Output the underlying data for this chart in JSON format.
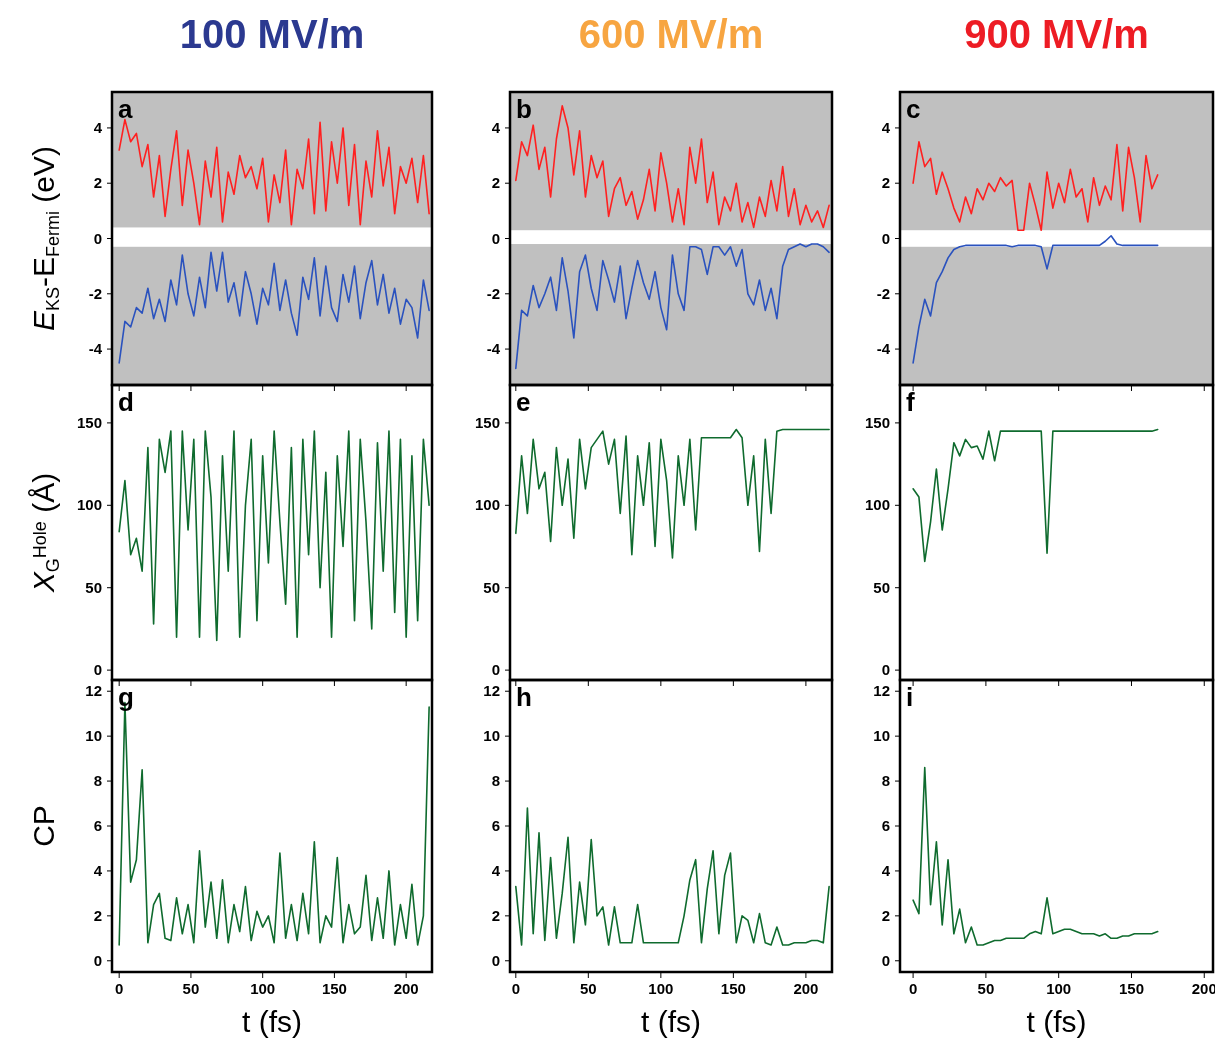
{
  "chart_data": [
    {
      "type": "line",
      "title": "100 MV/m",
      "ylabel": "E$_{KS}$-E$_{Fermi}$ (eV)",
      "annotations": [
        "a"
      ],
      "xlim": [
        -5,
        218
      ],
      "xticks": [
        0,
        50,
        100,
        150,
        200
      ],
      "ylim": [
        -5.3,
        5.3
      ],
      "yticks": [
        -4,
        -2,
        0,
        2,
        4
      ],
      "tick_labels": "y",
      "bands": [
        {
          "axis": "y",
          "from": 0.4,
          "to": 5.3,
          "color": "#c0c0c0"
        },
        {
          "axis": "y",
          "from": -5.3,
          "to": -0.3,
          "color": "#c0c0c0"
        }
      ],
      "series": [
        {
          "color": "#ff2020",
          "x": [
            0,
            4,
            8,
            12,
            16,
            20,
            24,
            28,
            32,
            36,
            40,
            44,
            48,
            52,
            56,
            60,
            64,
            68,
            72,
            76,
            80,
            84,
            88,
            92,
            96,
            100,
            104,
            108,
            112,
            116,
            120,
            124,
            128,
            132,
            136,
            140,
            144,
            148,
            152,
            156,
            160,
            164,
            168,
            172,
            176,
            180,
            184,
            188,
            192,
            196,
            200,
            204,
            208,
            212,
            216
          ],
          "values": [
            3.2,
            4.3,
            3.5,
            3.8,
            2.6,
            3.4,
            1.5,
            3.0,
            0.8,
            2.5,
            3.9,
            1.2,
            3.2,
            2.0,
            0.5,
            2.8,
            1.5,
            3.3,
            0.6,
            2.4,
            1.6,
            3.0,
            2.2,
            2.6,
            1.8,
            2.9,
            0.6,
            2.3,
            1.3,
            3.2,
            0.5,
            2.5,
            1.8,
            3.6,
            0.9,
            4.2,
            1.0,
            3.5,
            2.0,
            4.0,
            1.2,
            3.4,
            0.5,
            2.8,
            1.5,
            3.9,
            1.9,
            3.3,
            0.9,
            2.6,
            2.0,
            2.9,
            1.3,
            3.0,
            0.9
          ]
        },
        {
          "color": "#2a52be",
          "x": [
            0,
            4,
            8,
            12,
            16,
            20,
            24,
            28,
            32,
            36,
            40,
            44,
            48,
            52,
            56,
            60,
            64,
            68,
            72,
            76,
            80,
            84,
            88,
            92,
            96,
            100,
            104,
            108,
            112,
            116,
            120,
            124,
            128,
            132,
            136,
            140,
            144,
            148,
            152,
            156,
            160,
            164,
            168,
            172,
            176,
            180,
            184,
            188,
            192,
            196,
            200,
            204,
            208,
            212,
            216
          ],
          "values": [
            -4.5,
            -3.0,
            -3.2,
            -2.5,
            -2.7,
            -1.8,
            -2.9,
            -2.2,
            -3.0,
            -1.5,
            -2.4,
            -0.6,
            -2.0,
            -2.8,
            -1.4,
            -2.5,
            -0.5,
            -1.9,
            -0.5,
            -2.3,
            -1.6,
            -2.8,
            -1.2,
            -2.0,
            -3.1,
            -1.8,
            -2.4,
            -0.9,
            -2.6,
            -1.5,
            -2.7,
            -3.5,
            -1.4,
            -2.2,
            -0.7,
            -2.8,
            -1.0,
            -2.5,
            -3.0,
            -1.3,
            -2.3,
            -1.0,
            -2.9,
            -1.6,
            -0.8,
            -2.4,
            -1.3,
            -2.7,
            -1.8,
            -3.1,
            -2.2,
            -2.5,
            -3.6,
            -1.5,
            -2.6
          ]
        }
      ]
    },
    {
      "type": "line",
      "title": "600 MV/m",
      "annotations": [
        "b"
      ],
      "xlim": [
        -4,
        218
      ],
      "xticks": [
        0,
        50,
        100,
        150,
        200
      ],
      "ylim": [
        -5.3,
        5.3
      ],
      "yticks": [
        -4,
        -2,
        0,
        2,
        4
      ],
      "tick_labels": "y",
      "bands": [
        {
          "axis": "y",
          "from": 0.3,
          "to": 5.3,
          "color": "#c0c0c0"
        },
        {
          "axis": "y",
          "from": -5.3,
          "to": -0.2,
          "color": "#c0c0c0"
        }
      ],
      "series": [
        {
          "color": "#ff2020",
          "x": [
            0,
            4,
            8,
            12,
            16,
            20,
            24,
            28,
            32,
            36,
            40,
            44,
            48,
            52,
            56,
            60,
            64,
            68,
            72,
            76,
            80,
            84,
            88,
            92,
            96,
            100,
            104,
            108,
            112,
            116,
            120,
            124,
            128,
            132,
            136,
            140,
            144,
            148,
            152,
            156,
            160,
            164,
            168,
            172,
            176,
            180,
            184,
            188,
            192,
            196,
            200,
            204,
            208,
            212,
            216
          ],
          "values": [
            2.1,
            3.5,
            3.0,
            4.1,
            2.5,
            3.3,
            1.5,
            3.6,
            4.8,
            4.0,
            2.3,
            3.9,
            1.5,
            3.0,
            2.2,
            2.8,
            0.8,
            1.8,
            2.2,
            1.2,
            1.7,
            0.7,
            1.4,
            2.5,
            1.0,
            3.1,
            2.0,
            0.6,
            1.8,
            0.5,
            3.3,
            2.0,
            3.6,
            1.3,
            2.4,
            0.5,
            1.5,
            1.0,
            2.0,
            0.6,
            1.3,
            0.4,
            1.5,
            0.8,
            2.1,
            1.0,
            2.6,
            0.8,
            1.8,
            0.5,
            1.2,
            0.6,
            1.0,
            0.4,
            1.2
          ]
        },
        {
          "color": "#2a52be",
          "x": [
            0,
            4,
            8,
            12,
            16,
            20,
            24,
            28,
            32,
            36,
            40,
            44,
            48,
            52,
            56,
            60,
            64,
            68,
            72,
            76,
            80,
            84,
            88,
            92,
            96,
            100,
            104,
            108,
            112,
            116,
            120,
            124,
            128,
            132,
            136,
            140,
            144,
            148,
            152,
            156,
            160,
            164,
            168,
            172,
            176,
            180,
            184,
            188,
            192,
            196,
            200,
            204,
            208,
            212,
            216
          ],
          "values": [
            -4.7,
            -2.6,
            -2.8,
            -1.7,
            -2.5,
            -2.0,
            -1.4,
            -2.6,
            -0.7,
            -1.9,
            -3.6,
            -1.2,
            -0.6,
            -1.8,
            -2.6,
            -0.8,
            -1.5,
            -2.3,
            -1.0,
            -2.9,
            -1.8,
            -0.8,
            -1.6,
            -2.2,
            -1.2,
            -2.5,
            -3.3,
            -0.6,
            -2.0,
            -2.6,
            -0.3,
            -0.3,
            -0.4,
            -1.3,
            -0.3,
            -0.3,
            -0.6,
            -0.3,
            -1.0,
            -0.4,
            -2.0,
            -2.4,
            -1.5,
            -2.6,
            -1.8,
            -2.9,
            -1.0,
            -0.4,
            -0.3,
            -0.2,
            -0.3,
            -0.2,
            -0.2,
            -0.3,
            -0.5
          ]
        }
      ]
    },
    {
      "type": "line",
      "title": "900 MV/m",
      "annotations": [
        "c"
      ],
      "xlim": [
        -9,
        206
      ],
      "xticks": [
        0,
        50,
        100,
        150,
        200
      ],
      "ylim": [
        -5.3,
        5.3
      ],
      "yticks": [
        -4,
        -2,
        0,
        2,
        4
      ],
      "tick_labels": "y",
      "bands": [
        {
          "axis": "y",
          "from": 0.3,
          "to": 5.3,
          "color": "#c0c0c0"
        },
        {
          "axis": "y",
          "from": -5.3,
          "to": -0.3,
          "color": "#c0c0c0"
        }
      ],
      "series": [
        {
          "color": "#ff2020",
          "x": [
            0,
            4,
            8,
            12,
            16,
            20,
            24,
            28,
            32,
            36,
            40,
            44,
            48,
            52,
            56,
            60,
            64,
            68,
            72,
            76,
            80,
            84,
            88,
            92,
            96,
            100,
            104,
            108,
            112,
            116,
            120,
            124,
            128,
            132,
            136,
            140,
            144,
            148,
            152,
            156,
            160,
            164,
            168
          ],
          "values": [
            2.0,
            3.5,
            2.6,
            2.9,
            1.6,
            2.4,
            1.8,
            1.1,
            0.6,
            1.5,
            0.9,
            1.8,
            1.4,
            2.0,
            1.7,
            2.2,
            1.9,
            2.1,
            0.3,
            0.3,
            2.0,
            1.2,
            0.3,
            2.4,
            1.1,
            2.0,
            1.3,
            2.5,
            1.5,
            1.8,
            0.6,
            2.2,
            1.2,
            1.9,
            1.4,
            3.4,
            1.0,
            3.3,
            2.2,
            0.6,
            3.0,
            1.8,
            2.3
          ]
        },
        {
          "color": "#2a52be",
          "x": [
            0,
            4,
            8,
            12,
            16,
            20,
            24,
            28,
            32,
            36,
            40,
            44,
            48,
            52,
            56,
            60,
            64,
            68,
            72,
            76,
            80,
            84,
            88,
            92,
            96,
            100,
            104,
            108,
            112,
            116,
            120,
            124,
            128,
            132,
            136,
            140,
            144,
            148,
            152,
            156,
            160,
            164,
            168
          ],
          "values": [
            -4.5,
            -3.2,
            -2.2,
            -2.8,
            -1.6,
            -1.2,
            -0.7,
            -0.4,
            -0.3,
            -0.25,
            -0.25,
            -0.25,
            -0.25,
            -0.25,
            -0.25,
            -0.25,
            -0.25,
            -0.3,
            -0.25,
            -0.25,
            -0.25,
            -0.25,
            -0.3,
            -1.1,
            -0.25,
            -0.25,
            -0.25,
            -0.25,
            -0.25,
            -0.25,
            -0.25,
            -0.25,
            -0.25,
            -0.1,
            0.1,
            -0.2,
            -0.25,
            -0.25,
            -0.25,
            -0.25,
            -0.25,
            -0.25,
            -0.25
          ]
        }
      ]
    },
    {
      "type": "line",
      "ylabel": "X$_{G}$$^{Hole}$ (Å)",
      "annotations": [
        "d"
      ],
      "xlim": [
        -5,
        218
      ],
      "xticks": [
        0,
        50,
        100,
        150,
        200
      ],
      "ylim": [
        -6,
        173
      ],
      "yticks": [
        0,
        50,
        100,
        150
      ],
      "tick_labels": "y",
      "series": [
        {
          "color": "#0f6b2e",
          "x": [
            0,
            4,
            8,
            12,
            16,
            20,
            24,
            28,
            32,
            36,
            40,
            44,
            48,
            52,
            56,
            60,
            64,
            68,
            72,
            76,
            80,
            84,
            88,
            92,
            96,
            100,
            104,
            108,
            112,
            116,
            120,
            124,
            128,
            132,
            136,
            140,
            144,
            148,
            152,
            156,
            160,
            164,
            168,
            172,
            176,
            180,
            184,
            188,
            192,
            196,
            200,
            204,
            208,
            212,
            216
          ],
          "values": [
            84,
            115,
            70,
            80,
            60,
            135,
            28,
            140,
            120,
            145,
            20,
            145,
            85,
            140,
            20,
            145,
            105,
            18,
            130,
            60,
            145,
            20,
            100,
            140,
            30,
            130,
            65,
            145,
            90,
            40,
            135,
            20,
            140,
            70,
            145,
            50,
            120,
            20,
            130,
            75,
            145,
            30,
            140,
            90,
            25,
            138,
            60,
            145,
            35,
            140,
            20,
            130,
            30,
            140,
            100
          ]
        }
      ]
    },
    {
      "type": "line",
      "annotations": [
        "e"
      ],
      "xlim": [
        -4,
        218
      ],
      "xticks": [
        0,
        50,
        100,
        150,
        200
      ],
      "ylim": [
        -6,
        173
      ],
      "yticks": [
        0,
        50,
        100,
        150
      ],
      "tick_labels": "y",
      "series": [
        {
          "color": "#0f6b2e",
          "x": [
            0,
            4,
            8,
            12,
            16,
            20,
            24,
            28,
            32,
            36,
            40,
            44,
            48,
            52,
            56,
            60,
            64,
            68,
            72,
            76,
            80,
            84,
            88,
            92,
            96,
            100,
            104,
            108,
            112,
            116,
            120,
            124,
            128,
            132,
            136,
            140,
            144,
            148,
            152,
            156,
            160,
            164,
            168,
            172,
            176,
            180,
            184,
            188,
            192,
            196,
            200,
            204,
            208,
            212,
            216
          ],
          "values": [
            83,
            130,
            95,
            140,
            110,
            120,
            78,
            135,
            100,
            128,
            80,
            140,
            110,
            135,
            140,
            145,
            125,
            140,
            95,
            142,
            70,
            130,
            100,
            138,
            75,
            140,
            115,
            68,
            130,
            100,
            140,
            85,
            141,
            141,
            141,
            141,
            141,
            141,
            146,
            141,
            100,
            130,
            72,
            140,
            95,
            145,
            146,
            146,
            146,
            146,
            146,
            146,
            146,
            146,
            146
          ]
        }
      ]
    },
    {
      "type": "line",
      "annotations": [
        "f"
      ],
      "xlim": [
        -9,
        206
      ],
      "xticks": [
        0,
        50,
        100,
        150,
        200
      ],
      "ylim": [
        -6,
        173
      ],
      "yticks": [
        0,
        50,
        100,
        150
      ],
      "tick_labels": "y",
      "series": [
        {
          "color": "#0f6b2e",
          "x": [
            0,
            4,
            8,
            12,
            16,
            20,
            24,
            28,
            32,
            36,
            40,
            44,
            48,
            52,
            56,
            60,
            64,
            68,
            72,
            76,
            80,
            84,
            88,
            92,
            96,
            100,
            104,
            108,
            112,
            116,
            120,
            124,
            128,
            132,
            136,
            140,
            144,
            148,
            152,
            156,
            160,
            164,
            168
          ],
          "values": [
            110,
            105,
            66,
            90,
            122,
            85,
            110,
            138,
            130,
            140,
            135,
            136,
            128,
            145,
            127,
            145,
            145,
            145,
            145,
            145,
            145,
            145,
            145,
            71,
            145,
            145,
            145,
            145,
            145,
            145,
            145,
            145,
            145,
            145,
            145,
            145,
            145,
            145,
            145,
            145,
            145,
            145,
            146
          ]
        }
      ]
    },
    {
      "type": "line",
      "ylabel": "CP",
      "xlabel": "t (fs)",
      "annotations": [
        "g"
      ],
      "xlim": [
        -5,
        218
      ],
      "xticks": [
        0,
        50,
        100,
        150,
        200
      ],
      "ylim": [
        -0.5,
        12.5
      ],
      "yticks": [
        0,
        2,
        4,
        6,
        8,
        10,
        12
      ],
      "series": [
        {
          "color": "#0f6b2e",
          "x": [
            0,
            4,
            8,
            12,
            16,
            20,
            24,
            28,
            32,
            36,
            40,
            44,
            48,
            52,
            56,
            60,
            64,
            68,
            72,
            76,
            80,
            84,
            88,
            92,
            96,
            100,
            104,
            108,
            112,
            116,
            120,
            124,
            128,
            132,
            136,
            140,
            144,
            148,
            152,
            156,
            160,
            164,
            168,
            172,
            176,
            180,
            184,
            188,
            192,
            196,
            200,
            204,
            208,
            212,
            216
          ],
          "values": [
            0.7,
            11.5,
            3.5,
            4.5,
            8.5,
            0.8,
            2.5,
            3.0,
            1.0,
            0.9,
            2.8,
            1.2,
            2.5,
            0.8,
            4.9,
            1.5,
            3.5,
            1.0,
            3.6,
            0.8,
            2.5,
            1.3,
            3.3,
            0.9,
            2.2,
            1.5,
            2.0,
            0.8,
            4.8,
            1.0,
            2.5,
            0.9,
            3.0,
            1.2,
            5.3,
            0.8,
            2.0,
            1.5,
            4.6,
            0.8,
            2.5,
            1.2,
            1.5,
            3.8,
            0.9,
            2.8,
            1.0,
            4.0,
            0.7,
            2.5,
            1.0,
            3.4,
            0.7,
            2.0,
            11.3
          ]
        }
      ]
    },
    {
      "type": "line",
      "xlabel": "t (fs)",
      "annotations": [
        "h"
      ],
      "xlim": [
        -4,
        218
      ],
      "xticks": [
        0,
        50,
        100,
        150,
        200
      ],
      "ylim": [
        -0.5,
        12.5
      ],
      "yticks": [
        0,
        2,
        4,
        6,
        8,
        10,
        12
      ],
      "series": [
        {
          "color": "#0f6b2e",
          "x": [
            0,
            4,
            8,
            12,
            16,
            20,
            24,
            28,
            32,
            36,
            40,
            44,
            48,
            52,
            56,
            60,
            64,
            68,
            72,
            76,
            80,
            84,
            88,
            92,
            96,
            100,
            104,
            108,
            112,
            116,
            120,
            124,
            128,
            132,
            136,
            140,
            144,
            148,
            152,
            156,
            160,
            164,
            168,
            172,
            176,
            180,
            184,
            188,
            192,
            196,
            200,
            204,
            208,
            212,
            216
          ],
          "values": [
            3.3,
            0.7,
            6.8,
            1.2,
            5.7,
            0.9,
            4.6,
            1.0,
            3.0,
            5.5,
            0.8,
            3.5,
            1.6,
            5.4,
            2.0,
            2.4,
            0.7,
            2.4,
            0.8,
            0.8,
            0.8,
            2.5,
            0.8,
            0.8,
            0.8,
            0.8,
            0.8,
            0.8,
            0.8,
            2.0,
            3.6,
            4.5,
            0.8,
            3.2,
            4.9,
            1.2,
            3.8,
            4.8,
            0.8,
            2.0,
            1.8,
            0.8,
            2.1,
            0.8,
            0.7,
            1.5,
            0.7,
            0.7,
            0.8,
            0.8,
            0.8,
            0.9,
            0.9,
            0.8,
            3.3
          ]
        }
      ]
    },
    {
      "type": "line",
      "xlabel": "t (fs)",
      "annotations": [
        "i"
      ],
      "xlim": [
        -9,
        206
      ],
      "xticks": [
        0,
        50,
        100,
        150,
        200
      ],
      "ylim": [
        -0.5,
        12.5
      ],
      "yticks": [
        0,
        2,
        4,
        6,
        8,
        10,
        12
      ],
      "series": [
        {
          "color": "#0f6b2e",
          "x": [
            0,
            4,
            8,
            12,
            16,
            20,
            24,
            28,
            32,
            36,
            40,
            44,
            48,
            52,
            56,
            60,
            64,
            68,
            72,
            76,
            80,
            84,
            88,
            92,
            96,
            100,
            104,
            108,
            112,
            116,
            120,
            124,
            128,
            132,
            136,
            140,
            144,
            148,
            152,
            156,
            160,
            164,
            168
          ],
          "values": [
            2.7,
            2.1,
            8.6,
            2.5,
            5.3,
            1.6,
            4.5,
            1.2,
            2.3,
            0.8,
            1.5,
            0.7,
            0.7,
            0.8,
            0.9,
            0.9,
            1.0,
            1.0,
            1.0,
            1.0,
            1.2,
            1.3,
            1.2,
            2.8,
            1.2,
            1.3,
            1.4,
            1.4,
            1.3,
            1.2,
            1.2,
            1.2,
            1.1,
            1.2,
            1.0,
            1.0,
            1.1,
            1.1,
            1.2,
            1.2,
            1.2,
            1.2,
            1.3
          ]
        }
      ]
    }
  ]
}
